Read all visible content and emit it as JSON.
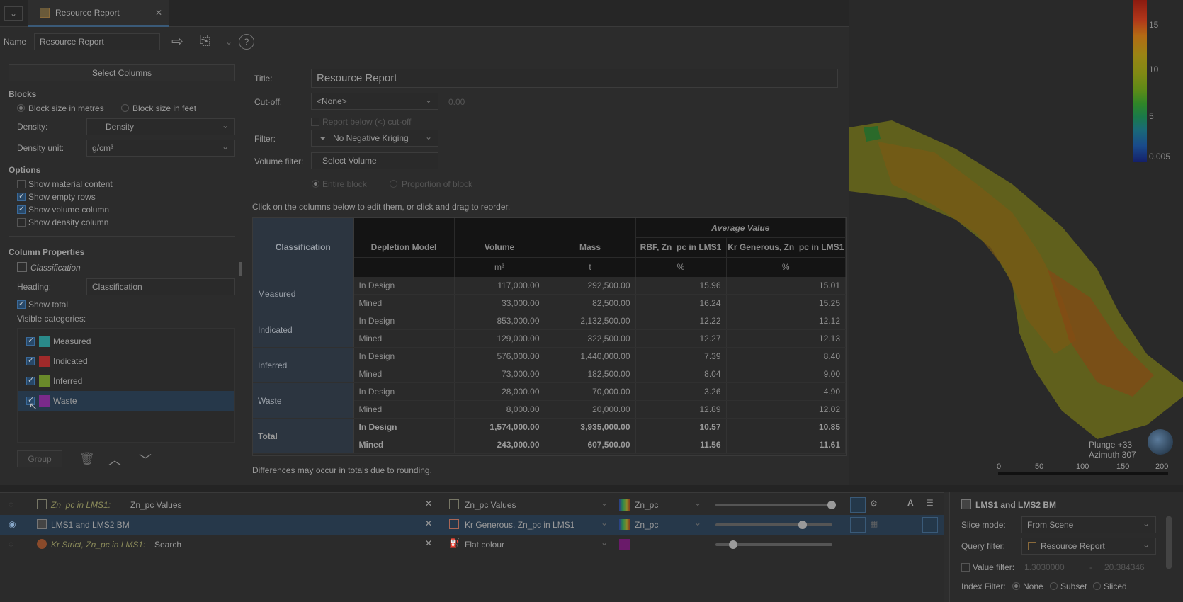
{
  "window": {
    "tab_title": "Resource Report"
  },
  "toolbar": {
    "name_label": "Name",
    "name_value": "Resource Report"
  },
  "left": {
    "select_columns": "Select Columns",
    "blocks_heading": "Blocks",
    "radio_metres": "Block size in metres",
    "radio_feet": "Block size in feet",
    "density_label": "Density:",
    "density_value": "Density",
    "density_unit_label": "Density unit:",
    "density_unit_value": "g/cm³",
    "options_heading": "Options",
    "options": [
      {
        "label": "Show material content",
        "checked": false
      },
      {
        "label": "Show empty rows",
        "checked": true
      },
      {
        "label": "Show volume column",
        "checked": true
      },
      {
        "label": "Show density column",
        "checked": false
      }
    ],
    "colprops_heading": "Column Properties",
    "colprops_item": "Classification",
    "heading_label": "Heading:",
    "heading_value": "Classification",
    "show_total": "Show total",
    "visible_categories": "Visible categories:",
    "categories": [
      {
        "label": "Measured",
        "color": "#2a8a8a"
      },
      {
        "label": "Indicated",
        "color": "#a02a2a"
      },
      {
        "label": "Inferred",
        "color": "#6a8a2a"
      },
      {
        "label": "Waste",
        "color": "#7a2a8a"
      }
    ],
    "group_button": "Group"
  },
  "right": {
    "title_label": "Title:",
    "title_value": "Resource Report",
    "cutoff_label": "Cut-off:",
    "cutoff_value": "<None>",
    "cutoff_number": "0.00",
    "report_below": "Report below (<) cut-off",
    "filter_label": "Filter:",
    "filter_value": "No Negative Kriging",
    "volume_filter_label": "Volume filter:",
    "volume_filter_value": "Select Volume",
    "entire_block": "Entire block",
    "proportion_block": "Proportion of block",
    "hint": "Click on the columns below to edit them, or click and drag to reorder.",
    "footer": "Differences may occur in totals due to rounding."
  },
  "table": {
    "avg_header": "Average Value",
    "headers": [
      "Classification",
      "Depletion Model",
      "Volume",
      "Mass",
      "RBF, Zn_pc in LMS1",
      "Kr Generous, Zn_pc in LMS1"
    ],
    "units": [
      "",
      "m³",
      "t",
      "%",
      "%"
    ],
    "groups": [
      {
        "name": "Measured",
        "rows": [
          [
            "In Design",
            "117,000.00",
            "292,500.00",
            "15.96",
            "15.01"
          ],
          [
            "Mined",
            "33,000.00",
            "82,500.00",
            "16.24",
            "15.25"
          ]
        ]
      },
      {
        "name": "Indicated",
        "rows": [
          [
            "In Design",
            "853,000.00",
            "2,132,500.00",
            "12.22",
            "12.12"
          ],
          [
            "Mined",
            "129,000.00",
            "322,500.00",
            "12.27",
            "12.13"
          ]
        ]
      },
      {
        "name": "Inferred",
        "rows": [
          [
            "In Design",
            "576,000.00",
            "1,440,000.00",
            "7.39",
            "8.40"
          ],
          [
            "Mined",
            "73,000.00",
            "182,500.00",
            "8.04",
            "9.00"
          ]
        ]
      },
      {
        "name": "Waste",
        "rows": [
          [
            "In Design",
            "28,000.00",
            "70,000.00",
            "3.26",
            "4.90"
          ],
          [
            "Mined",
            "8,000.00",
            "20,000.00",
            "12.89",
            "12.02"
          ]
        ]
      },
      {
        "name": "Total",
        "rows": [
          [
            "In Design",
            "1,574,000.00",
            "3,935,000.00",
            "10.57",
            "10.85"
          ],
          [
            "Mined",
            "243,000.00",
            "607,500.00",
            "11.56",
            "11.61"
          ]
        ]
      }
    ]
  },
  "viewport": {
    "legend_ticks": [
      "15",
      "10",
      "5",
      "0.005"
    ],
    "plunge": "Plunge +33",
    "azimuth": "Azimuth 307",
    "scale": [
      "0",
      "50",
      "100",
      "150",
      "200"
    ]
  },
  "objects": [
    {
      "prefix": "Zn_pc in LMS1:",
      "name": "Zn_pc Values",
      "style": "Zn_pc Values",
      "color": "Zn_pc",
      "slider": 1.0
    },
    {
      "prefix": "",
      "name": "LMS1 and LMS2 BM",
      "style": "Kr Generous, Zn_pc in LMS1",
      "color": "Zn_pc",
      "slider": 0.75
    },
    {
      "prefix": "Kr Strict, Zn_pc in LMS1:",
      "name": "Search",
      "style": "Flat colour",
      "color": "",
      "slider": 0.13
    }
  ],
  "props": {
    "title": "LMS1 and LMS2 BM",
    "slice_mode_label": "Slice mode:",
    "slice_mode_value": "From Scene",
    "query_filter_label": "Query filter:",
    "query_filter_value": "Resource Report",
    "value_filter_label": "Value filter:",
    "value_min": "1.3030000",
    "value_dash": "-",
    "value_max": "20.384346",
    "index_filter_label": "Index Filter:",
    "index_none": "None",
    "index_subset": "Subset",
    "index_sliced": "Sliced"
  }
}
